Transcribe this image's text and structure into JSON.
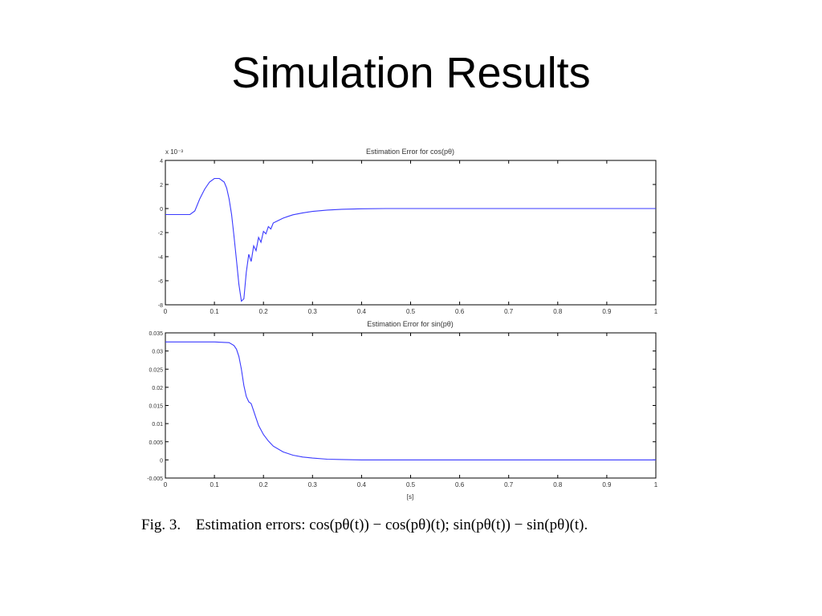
{
  "slide": {
    "title": "Simulation Results"
  },
  "caption": {
    "label": "Fig. 3.",
    "lead": "Estimation errors:",
    "formula_cos": "cos(pθ(t)) − cos(pθ)(t)",
    "formula_sin": "sin(pθ(t)) − sin(pθ)(t)",
    "sep": ";",
    "end": "."
  },
  "colors": {
    "line": "#3a3aff",
    "axes": "#000000"
  },
  "chart_data": [
    {
      "type": "line",
      "title": "Estimation Error for cos(pθ)",
      "xlabel": "",
      "ylabel": "",
      "exponent_label": "x 10⁻³",
      "xlim": [
        0,
        1
      ],
      "ylim": [
        -8,
        4
      ],
      "xticks": [
        0,
        0.1,
        0.2,
        0.3,
        0.4,
        0.5,
        0.6,
        0.7,
        0.8,
        0.9,
        1
      ],
      "xtick_labels": [
        "0",
        "0.1",
        "0.2",
        "0.3",
        "0.4",
        "0.5",
        "0.6",
        "0.7",
        "0.8",
        "0.9",
        "1"
      ],
      "yticks": [
        4,
        2,
        0,
        -2,
        -4,
        -6,
        -8
      ],
      "ytick_labels": [
        "4",
        "2",
        "0",
        "-2",
        "-4",
        "-6",
        "-8"
      ],
      "grid": false,
      "series": [
        {
          "x": [
            0,
            0.05,
            0.06,
            0.07,
            0.08,
            0.09,
            0.1,
            0.11,
            0.12,
            0.125,
            0.13,
            0.135,
            0.14,
            0.145,
            0.15,
            0.155,
            0.16,
            0.165,
            0.17,
            0.175,
            0.18,
            0.185,
            0.19,
            0.195,
            0.2,
            0.205,
            0.21,
            0.215,
            0.22,
            0.23,
            0.24,
            0.25,
            0.26,
            0.28,
            0.3,
            0.33,
            0.36,
            0.4,
            0.45,
            0.5,
            0.6,
            0.7,
            0.8,
            0.9,
            1.0
          ],
          "y": [
            -0.5,
            -0.5,
            -0.2,
            0.8,
            1.6,
            2.2,
            2.5,
            2.5,
            2.2,
            1.7,
            0.8,
            -0.5,
            -2.3,
            -4.3,
            -6.3,
            -7.7,
            -7.5,
            -5.3,
            -3.8,
            -4.4,
            -3.1,
            -3.5,
            -2.4,
            -2.8,
            -1.9,
            -2.1,
            -1.5,
            -1.7,
            -1.2,
            -1.0,
            -0.8,
            -0.65,
            -0.52,
            -0.36,
            -0.24,
            -0.13,
            -0.06,
            -0.02,
            0,
            0,
            0,
            0,
            0,
            0,
            0
          ]
        }
      ]
    },
    {
      "type": "line",
      "title": "Estimation Error for sin(pθ)",
      "xlabel": "[s]",
      "ylabel": "",
      "xlim": [
        0,
        1
      ],
      "ylim": [
        -0.005,
        0.035
      ],
      "xticks": [
        0,
        0.1,
        0.2,
        0.3,
        0.4,
        0.5,
        0.6,
        0.7,
        0.8,
        0.9,
        1
      ],
      "xtick_labels": [
        "0",
        "0.1",
        "0.2",
        "0.3",
        "0.4",
        "0.5",
        "0.6",
        "0.7",
        "0.8",
        "0.9",
        "1"
      ],
      "yticks": [
        0.035,
        0.03,
        0.025,
        0.02,
        0.015,
        0.01,
        0.005,
        0,
        -0.005
      ],
      "ytick_labels": [
        "0.035",
        "0.03",
        "0.025",
        "0.02",
        "0.015",
        "0.01",
        "0.005",
        "0",
        "-0.005"
      ],
      "grid": false,
      "series": [
        {
          "x": [
            0,
            0.1,
            0.13,
            0.14,
            0.145,
            0.15,
            0.155,
            0.16,
            0.165,
            0.17,
            0.175,
            0.18,
            0.185,
            0.19,
            0.2,
            0.21,
            0.22,
            0.24,
            0.26,
            0.28,
            0.3,
            0.33,
            0.36,
            0.4,
            0.45,
            0.5,
            0.6,
            0.7,
            0.8,
            0.9,
            1.0
          ],
          "y": [
            0.0325,
            0.0325,
            0.0323,
            0.0315,
            0.0305,
            0.0285,
            0.025,
            0.0205,
            0.0175,
            0.016,
            0.0155,
            0.0135,
            0.0115,
            0.0095,
            0.007,
            0.0052,
            0.0038,
            0.0022,
            0.0013,
            0.0008,
            0.0005,
            0.0002,
            0.0001,
            0,
            0,
            0,
            0,
            0,
            0,
            0,
            0
          ]
        }
      ]
    }
  ]
}
